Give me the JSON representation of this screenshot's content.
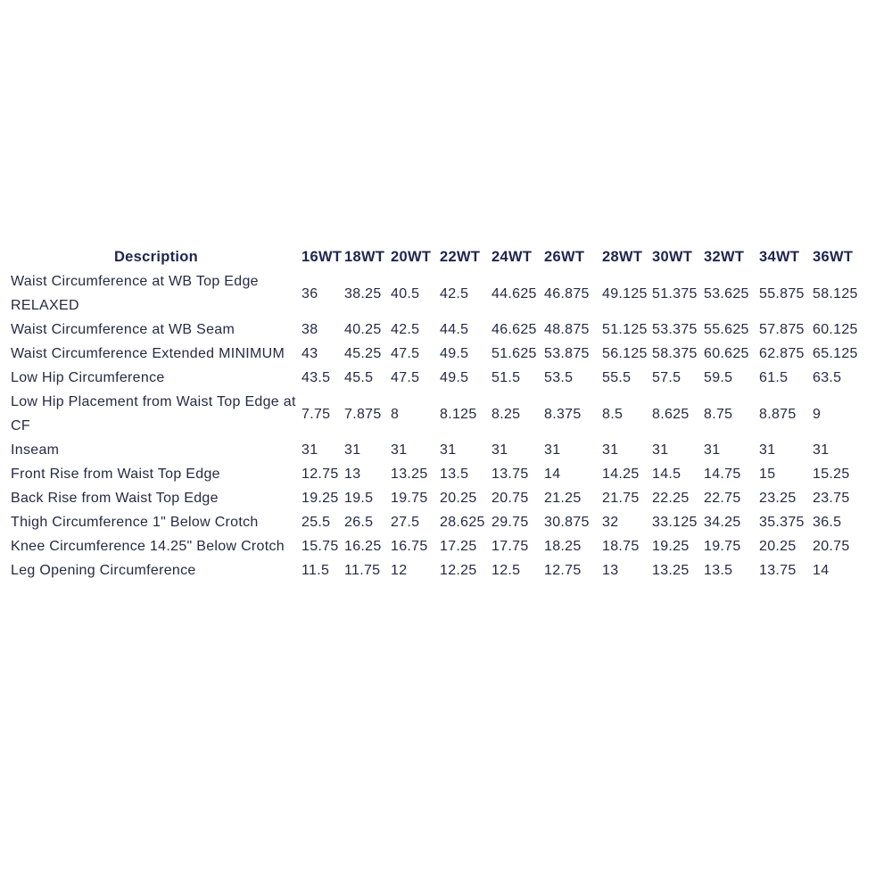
{
  "table": {
    "header": [
      "Description",
      "16WT",
      "18WT",
      "20WT",
      "22WT",
      "24WT",
      "26WT",
      "28WT",
      "30WT",
      "32WT",
      "34WT",
      "36WT"
    ],
    "rows": [
      [
        "Waist Circumference at WB Top Edge RELAXED",
        36,
        38.25,
        40.5,
        42.5,
        44.625,
        46.875,
        49.125,
        51.375,
        53.625,
        55.875,
        58.125
      ],
      [
        "Waist Circumference at WB Seam",
        38,
        40.25,
        42.5,
        44.5,
        46.625,
        48.875,
        51.125,
        53.375,
        55.625,
        57.875,
        60.125
      ],
      [
        "Waist Circumference Extended MINIMUM",
        43,
        45.25,
        47.5,
        49.5,
        51.625,
        53.875,
        56.125,
        58.375,
        60.625,
        62.875,
        65.125
      ],
      [
        "Low Hip Circumference",
        43.5,
        45.5,
        47.5,
        49.5,
        51.5,
        53.5,
        55.5,
        57.5,
        59.5,
        61.5,
        63.5
      ],
      [
        "Low Hip Placement from Waist Top Edge at CF",
        7.75,
        7.875,
        8,
        8.125,
        8.25,
        8.375,
        8.5,
        8.625,
        8.75,
        8.875,
        9
      ],
      [
        "Inseam",
        31,
        31,
        31,
        31,
        31,
        31,
        31,
        31,
        31,
        31,
        31
      ],
      [
        "Front Rise from Waist Top Edge",
        12.75,
        13,
        13.25,
        13.5,
        13.75,
        14,
        14.25,
        14.5,
        14.75,
        15,
        15.25
      ],
      [
        "Back Rise from Waist Top Edge",
        19.25,
        19.5,
        19.75,
        20.25,
        20.75,
        21.25,
        21.75,
        22.25,
        22.75,
        23.25,
        23.75
      ],
      [
        "Thigh Circumference 1\" Below Crotch",
        25.5,
        26.5,
        27.5,
        28.625,
        29.75,
        30.875,
        32,
        33.125,
        34.25,
        35.375,
        36.5
      ],
      [
        "Knee Circumference 14.25\" Below Crotch",
        15.75,
        16.25,
        16.75,
        17.25,
        17.75,
        18.25,
        18.75,
        19.25,
        19.75,
        20.25,
        20.75
      ],
      [
        "Leg Opening Circumference",
        11.5,
        11.75,
        12,
        12.25,
        12.5,
        12.75,
        13,
        13.25,
        13.5,
        13.75,
        14
      ]
    ]
  }
}
